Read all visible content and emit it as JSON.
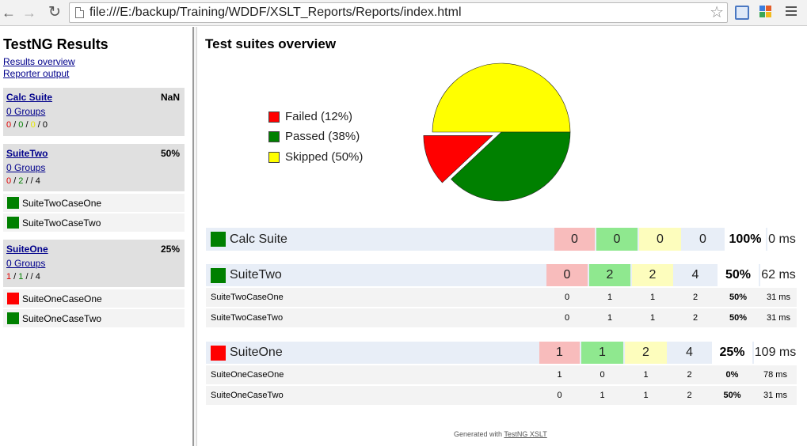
{
  "browser": {
    "url": "file:///E:/backup/Training/WDDF/XSLT_Reports/Reports/index.html",
    "icons": [
      "back-arrow-icon",
      "forward-arrow-icon",
      "reload-icon",
      "page-icon",
      "star-icon",
      "extension-icon",
      "menu-icon"
    ]
  },
  "sidebar": {
    "title": "TestNG Results",
    "links": [
      "Results overview",
      "Reporter output"
    ],
    "suites": [
      {
        "name": "Calc Suite",
        "pct": "NaN",
        "groups": "0 Groups",
        "fail": "0",
        "pass": "0",
        "skip": "0",
        "total": "0",
        "cases": []
      },
      {
        "name": "SuiteTwo",
        "pct": "50%",
        "groups": "0 Groups",
        "fail": "0",
        "pass": "2",
        "skip": "",
        "total": "4",
        "cases": [
          {
            "name": "SuiteTwoCaseOne",
            "status": "pass"
          },
          {
            "name": "SuiteTwoCaseTwo",
            "status": "pass"
          }
        ]
      },
      {
        "name": "SuiteOne",
        "pct": "25%",
        "groups": "0 Groups",
        "fail": "1",
        "pass": "1",
        "skip": "",
        "total": "4",
        "cases": [
          {
            "name": "SuiteOneCaseOne",
            "status": "fail"
          },
          {
            "name": "SuiteOneCaseTwo",
            "status": "pass"
          }
        ]
      }
    ]
  },
  "main": {
    "title": "Test suites overview",
    "chart_data": {
      "type": "pie",
      "title": "",
      "categories": [
        "Failed",
        "Passed",
        "Skipped"
      ],
      "values": [
        12,
        38,
        50
      ],
      "labels": [
        "Failed (12%)",
        "Passed (38%)",
        "Skipped (50%)"
      ],
      "colors": [
        "#ff0000",
        "#008000",
        "#ffff00"
      ],
      "legend": "left",
      "exploded": "Failed"
    },
    "suites": [
      {
        "name": "Calc Suite",
        "status": "pass",
        "fail": "0",
        "pass": "0",
        "skip": "0",
        "total": "0",
        "pct": "100%",
        "time": "0 ms",
        "cases": []
      },
      {
        "name": "SuiteTwo",
        "status": "pass",
        "fail": "0",
        "pass": "2",
        "skip": "2",
        "total": "4",
        "pct": "50%",
        "time": "62 ms",
        "cases": [
          {
            "name": "SuiteTwoCaseOne",
            "fail": "0",
            "pass": "1",
            "skip": "1",
            "total": "2",
            "pct": "50%",
            "time": "31 ms"
          },
          {
            "name": "SuiteTwoCaseTwo",
            "fail": "0",
            "pass": "1",
            "skip": "1",
            "total": "2",
            "pct": "50%",
            "time": "31 ms"
          }
        ]
      },
      {
        "name": "SuiteOne",
        "status": "fail",
        "fail": "1",
        "pass": "1",
        "skip": "2",
        "total": "4",
        "pct": "25%",
        "time": "109 ms",
        "cases": [
          {
            "name": "SuiteOneCaseOne",
            "fail": "1",
            "pass": "0",
            "skip": "1",
            "total": "2",
            "pct": "0%",
            "time": "78 ms"
          },
          {
            "name": "SuiteOneCaseTwo",
            "fail": "0",
            "pass": "1",
            "skip": "1",
            "total": "2",
            "pct": "50%",
            "time": "31 ms"
          }
        ]
      }
    ],
    "footer_prefix": "Generated with",
    "footer_link": "TestNG XSLT"
  },
  "colors": {
    "fail": "#ff0000",
    "pass": "#008000",
    "skip": "#ffff00"
  }
}
